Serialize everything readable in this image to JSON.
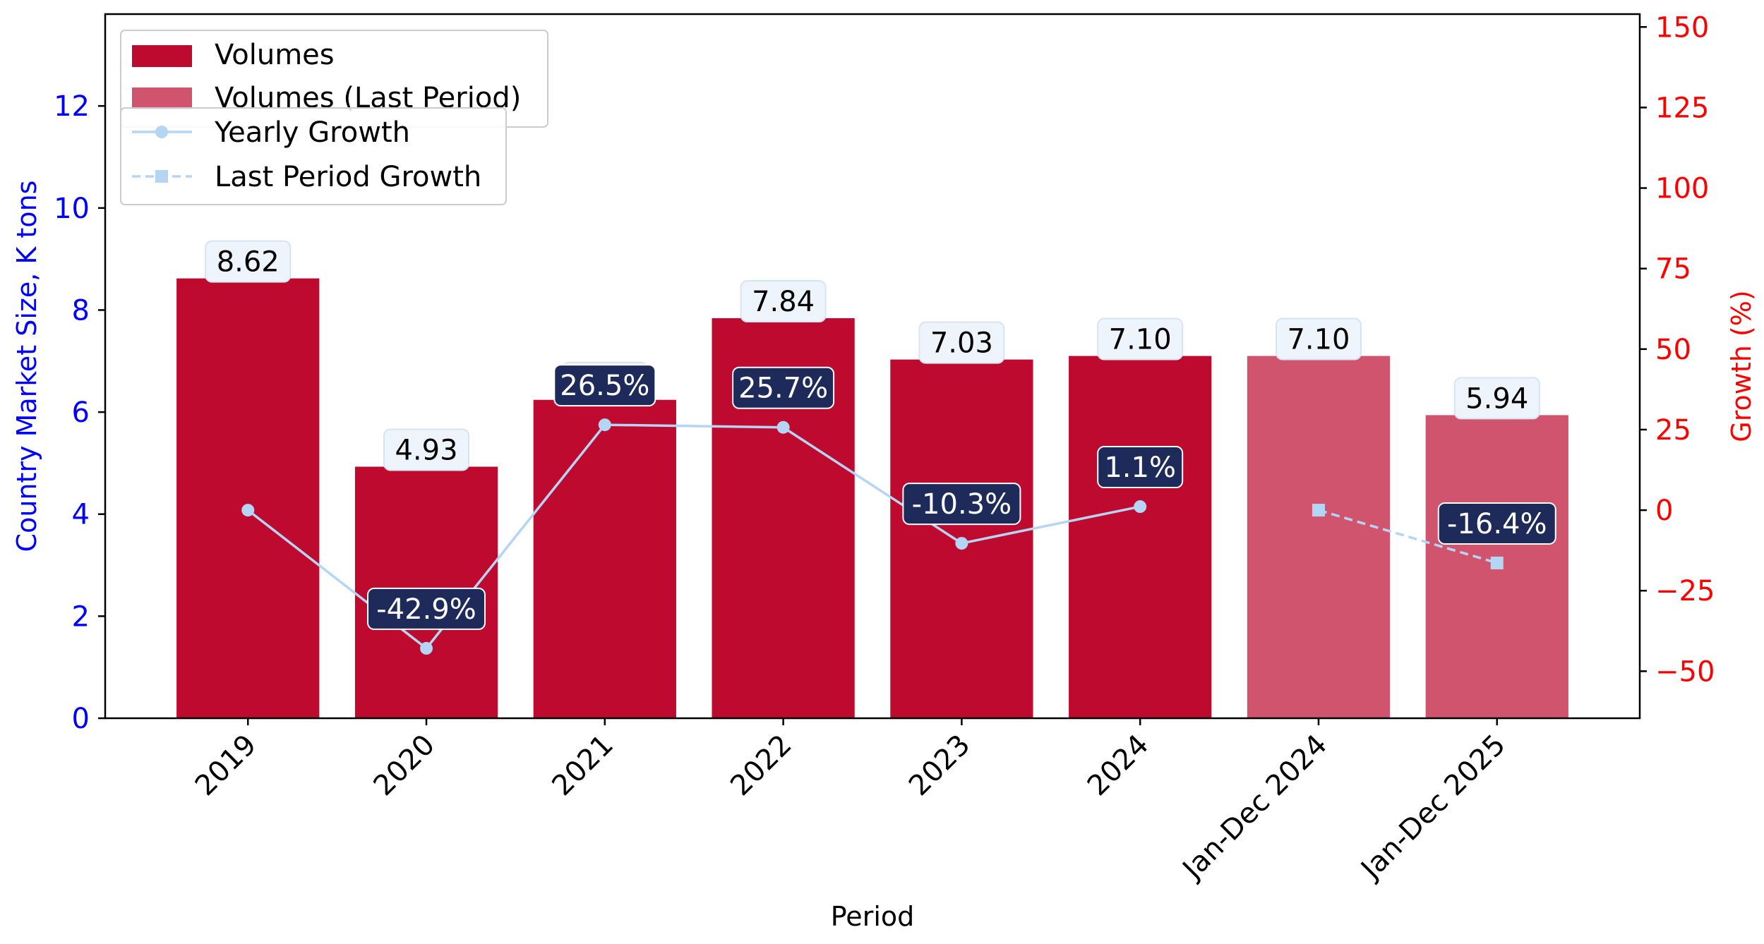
{
  "chart_data": {
    "type": "bar",
    "categories": [
      "2019",
      "2020",
      "2021",
      "2022",
      "2023",
      "2024",
      "Jan-Dec 2024",
      "Jan-Dec 2025"
    ],
    "series": [
      {
        "name": "Volumes",
        "kind": "bar",
        "axis": "left",
        "color": "#be0a2f",
        "values": [
          8.62,
          4.93,
          6.24,
          7.84,
          7.03,
          7.1,
          null,
          null
        ],
        "labels": [
          "8.62",
          "4.93",
          "6.24",
          "7.84",
          "7.03",
          "7.10",
          null,
          null
        ]
      },
      {
        "name": "Volumes (Last Period)",
        "kind": "bar",
        "axis": "left",
        "color": "#d0546d",
        "values": [
          null,
          null,
          null,
          null,
          null,
          null,
          7.1,
          5.94
        ],
        "labels": [
          null,
          null,
          null,
          null,
          null,
          null,
          "7.10",
          "5.94"
        ]
      },
      {
        "name": "Yearly Growth",
        "kind": "line",
        "axis": "right",
        "marker": "circle",
        "style": "solid",
        "color": "#b5d5f5",
        "values": [
          0,
          -42.9,
          26.5,
          25.7,
          -10.3,
          1.1,
          null,
          null
        ],
        "labels": [
          null,
          "-42.9%",
          "26.5%",
          "25.7%",
          "-10.3%",
          "1.1%",
          null,
          null
        ]
      },
      {
        "name": "Last Period Growth",
        "kind": "line",
        "axis": "right",
        "marker": "square",
        "style": "dashed",
        "color": "#b5d5f5",
        "values": [
          null,
          null,
          null,
          null,
          null,
          null,
          0,
          -16.4
        ],
        "labels": [
          null,
          null,
          null,
          null,
          null,
          null,
          null,
          "-16.4%"
        ]
      }
    ],
    "xlabel": "Period",
    "ylabel": "Country Market Size, K tons",
    "y2label": "Growth (%)",
    "ylim": [
      0,
      13.8
    ],
    "y2lim": [
      -64.6,
      154
    ],
    "yticks": [
      "0",
      "2",
      "4",
      "6",
      "8",
      "10",
      "12"
    ],
    "y2ticks": [
      "−50",
      "−25",
      "0",
      "25",
      "50",
      "75",
      "100",
      "125",
      "150"
    ],
    "legend_placement": "top-left",
    "grid": false,
    "colors": {
      "left_axis": "#0000ff",
      "right_axis": "#ff0000",
      "bar_label_bg": "#eef4fb",
      "growth_label_bg": "#1e2a5a"
    }
  }
}
